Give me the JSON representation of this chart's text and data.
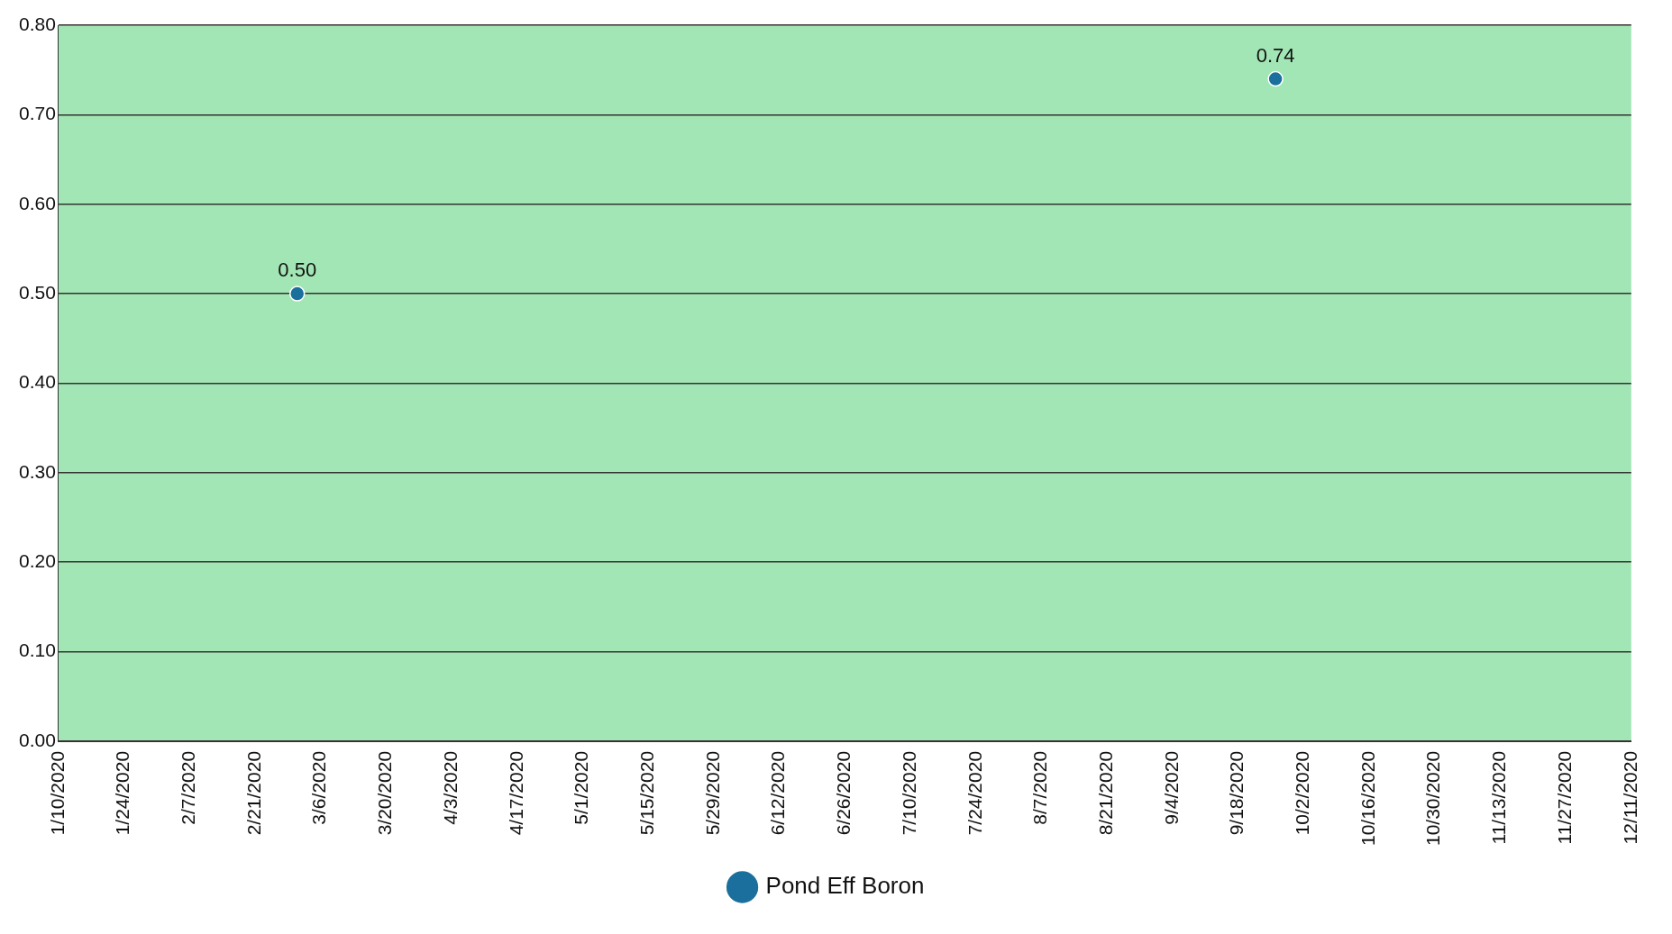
{
  "chart_data": {
    "type": "scatter",
    "x": [
      "2020-03-01",
      "2020-09-26"
    ],
    "series": [
      {
        "name": "Pond Eff Boron",
        "color": "#1b6f9c",
        "values": [
          0.5,
          0.74
        ],
        "value_labels": [
          "0.50",
          "0.74"
        ]
      }
    ],
    "xlim": [
      "2020-01-10",
      "2020-12-11"
    ],
    "xticks": [
      {
        "value": "2020-01-10",
        "label": "1/10/2020"
      },
      {
        "value": "2020-01-24",
        "label": "1/24/2020"
      },
      {
        "value": "2020-02-07",
        "label": "2/7/2020"
      },
      {
        "value": "2020-02-21",
        "label": "2/21/2020"
      },
      {
        "value": "2020-03-06",
        "label": "3/6/2020"
      },
      {
        "value": "2020-03-20",
        "label": "3/20/2020"
      },
      {
        "value": "2020-04-03",
        "label": "4/3/2020"
      },
      {
        "value": "2020-04-17",
        "label": "4/17/2020"
      },
      {
        "value": "2020-05-01",
        "label": "5/1/2020"
      },
      {
        "value": "2020-05-15",
        "label": "5/15/2020"
      },
      {
        "value": "2020-05-29",
        "label": "5/29/2020"
      },
      {
        "value": "2020-06-12",
        "label": "6/12/2020"
      },
      {
        "value": "2020-06-26",
        "label": "6/26/2020"
      },
      {
        "value": "2020-07-10",
        "label": "7/10/2020"
      },
      {
        "value": "2020-07-24",
        "label": "7/24/2020"
      },
      {
        "value": "2020-08-07",
        "label": "8/7/2020"
      },
      {
        "value": "2020-08-21",
        "label": "8/21/2020"
      },
      {
        "value": "2020-09-04",
        "label": "9/4/2020"
      },
      {
        "value": "2020-09-18",
        "label": "9/18/2020"
      },
      {
        "value": "2020-10-02",
        "label": "10/2/2020"
      },
      {
        "value": "2020-10-16",
        "label": "10/16/2020"
      },
      {
        "value": "2020-10-30",
        "label": "10/30/2020"
      },
      {
        "value": "2020-11-13",
        "label": "11/13/2020"
      },
      {
        "value": "2020-11-27",
        "label": "11/27/2020"
      },
      {
        "value": "2020-12-11",
        "label": "12/11/2020"
      }
    ],
    "ylim": [
      0,
      0.8
    ],
    "yticks": [
      {
        "value": 0,
        "label": "0.00"
      },
      {
        "value": 0.1,
        "label": "0.10"
      },
      {
        "value": 0.2,
        "label": "0.20"
      },
      {
        "value": 0.3,
        "label": "0.30"
      },
      {
        "value": 0.4,
        "label": "0.40"
      },
      {
        "value": 0.5,
        "label": "0.50"
      },
      {
        "value": 0.6,
        "label": "0.60"
      },
      {
        "value": 0.7,
        "label": "0.70"
      },
      {
        "value": 0.8,
        "label": "0.80"
      }
    ],
    "grid": "y",
    "legend": "bottom",
    "marker": "circle"
  }
}
